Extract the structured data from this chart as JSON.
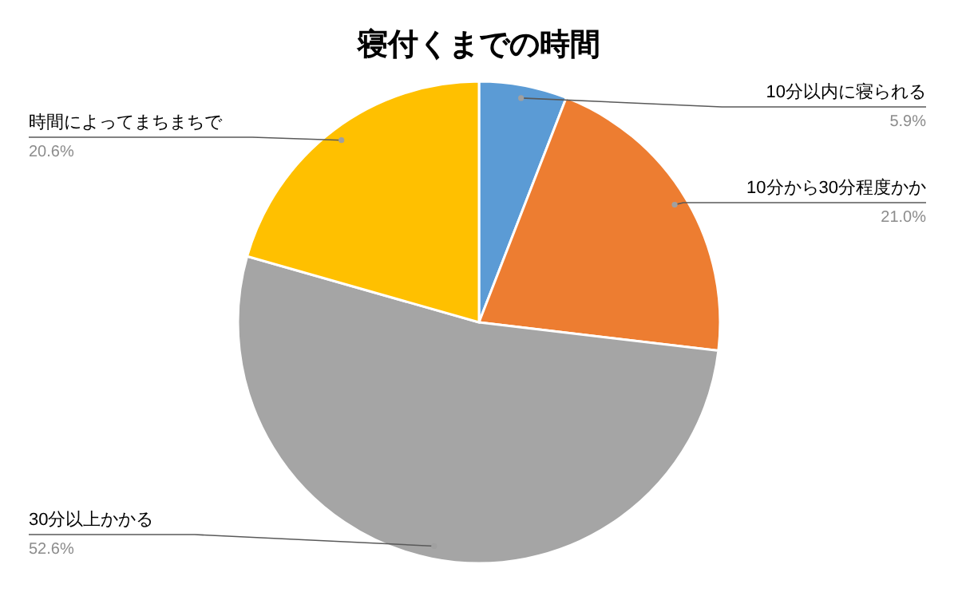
{
  "chart_data": {
    "type": "pie",
    "title": "寝付くまでの時間",
    "categories": [
      "10分以内に寝られる",
      "10分から30分程度かか",
      "30分以上かかる",
      "時間によってまちまちで"
    ],
    "values": [
      5.9,
      21.0,
      52.6,
      20.6
    ],
    "value_labels": [
      "5.9%",
      "21.0%",
      "52.6%",
      "20.6%"
    ],
    "colors": [
      "#5b9bd5",
      "#ed7d31",
      "#a5a5a5",
      "#ffc000"
    ]
  }
}
